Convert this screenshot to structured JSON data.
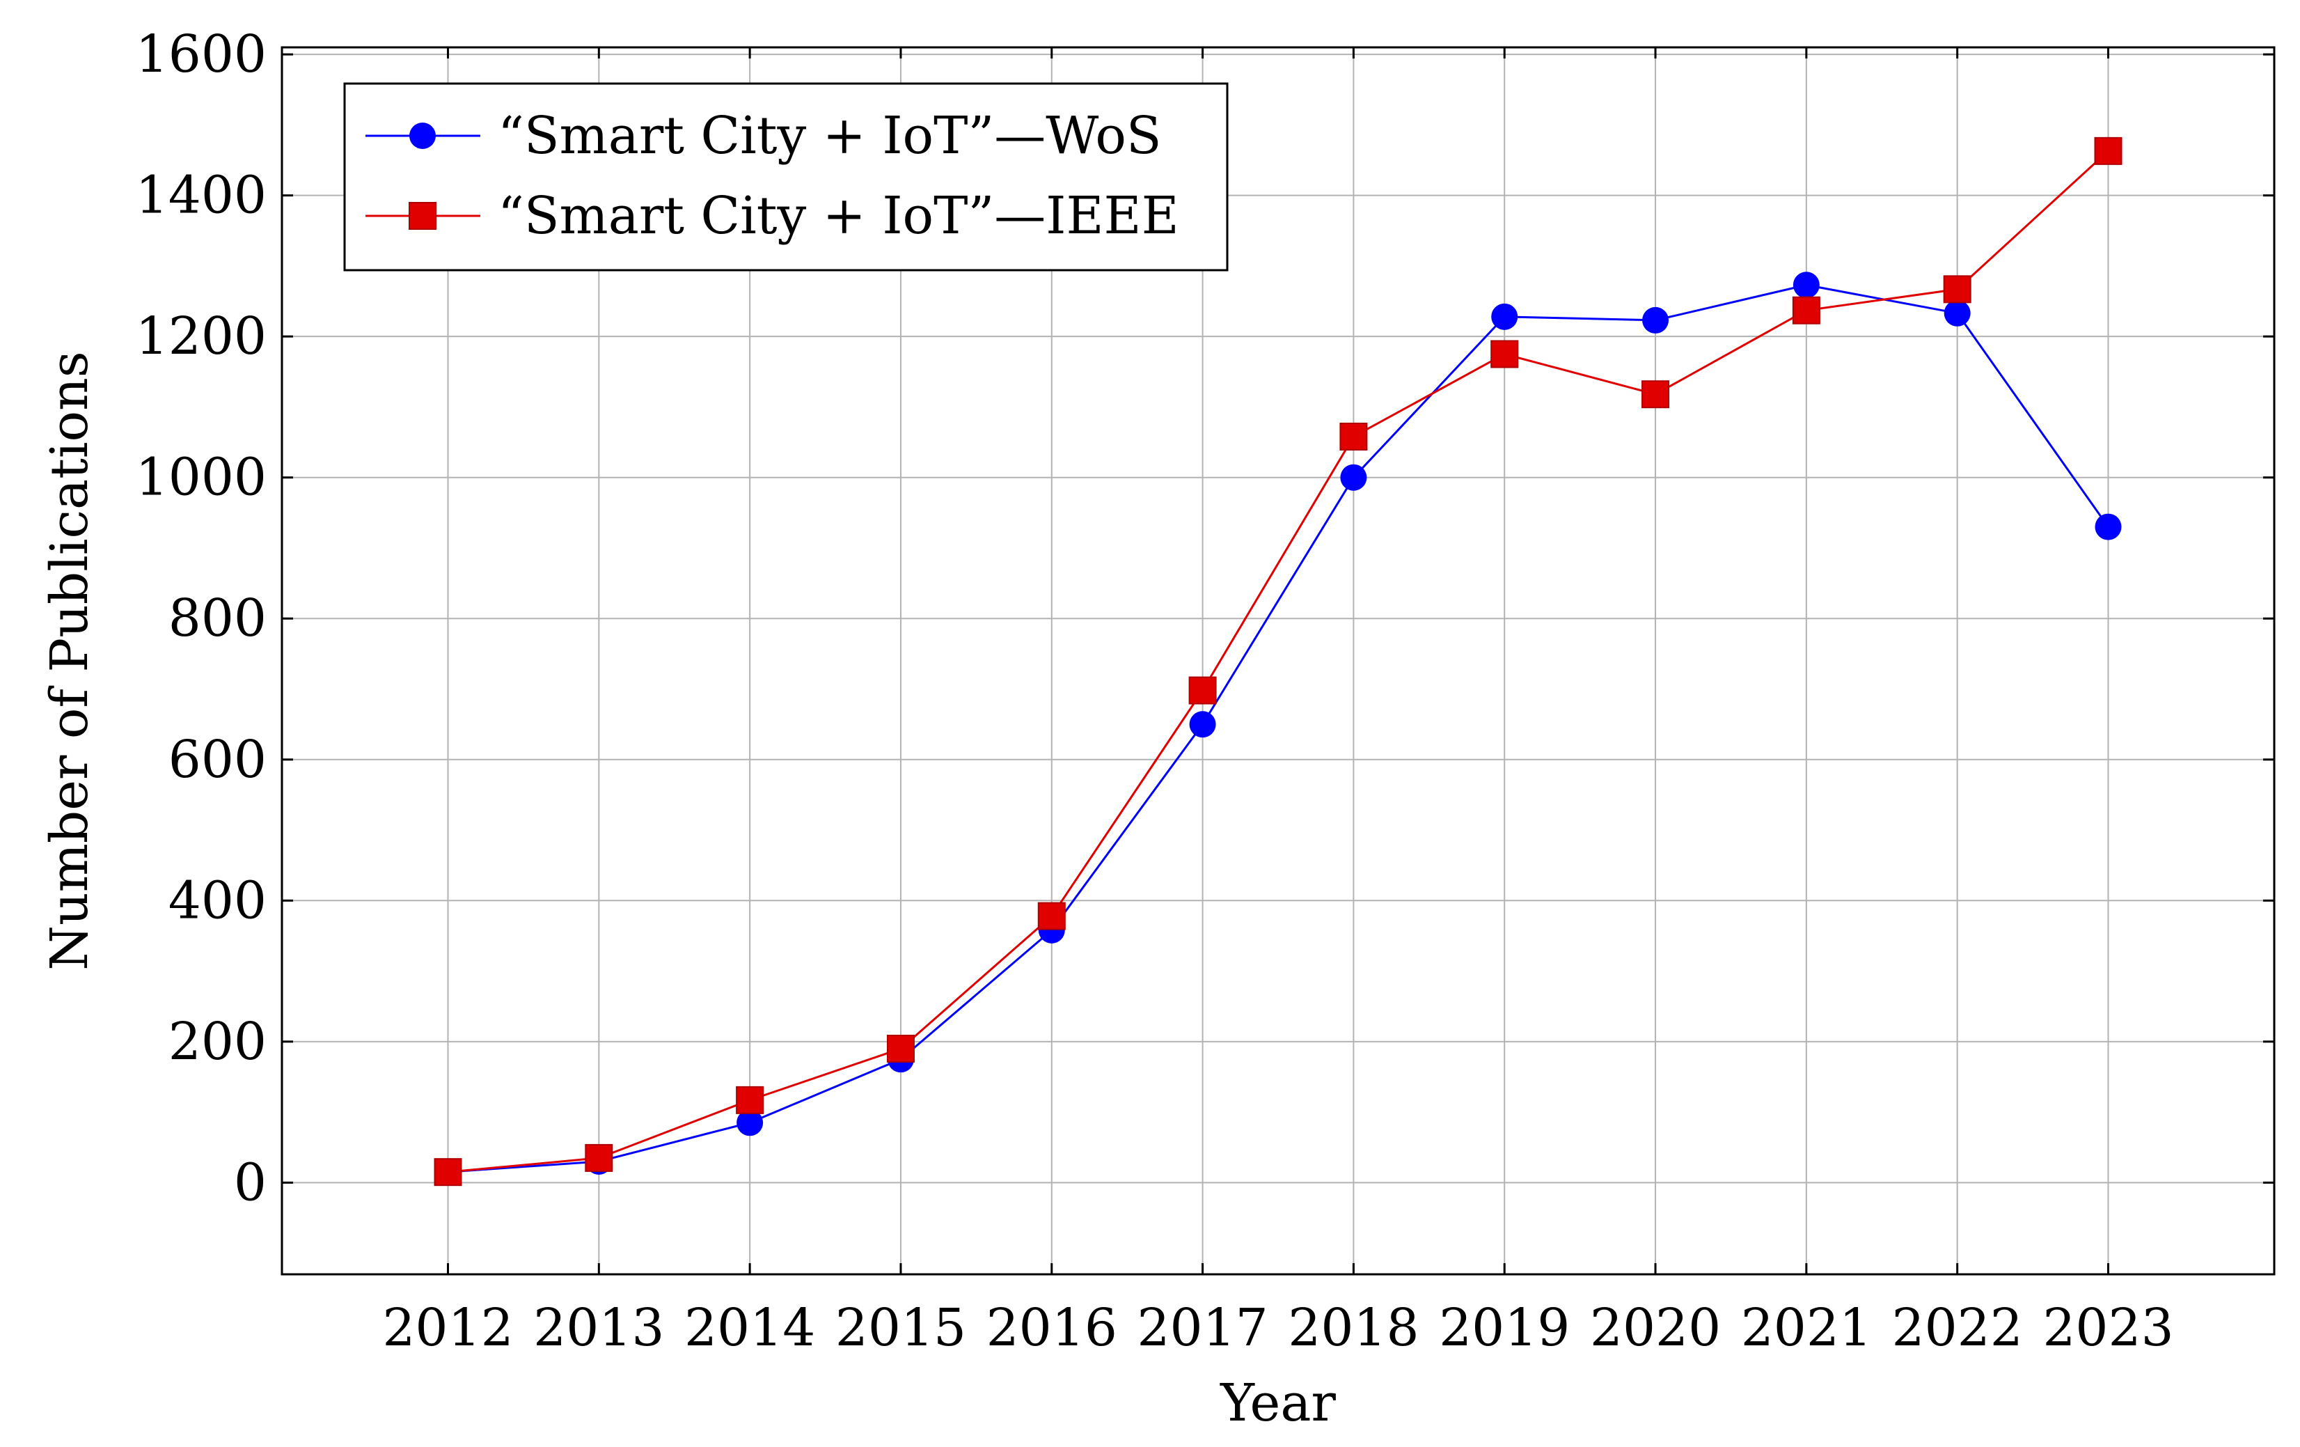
{
  "chart_data": {
    "type": "line",
    "title": "",
    "xlabel": "Year",
    "ylabel": "Number of Publications",
    "categories": [
      "2012",
      "2013",
      "2014",
      "2015",
      "2016",
      "2017",
      "2018",
      "2019",
      "2020",
      "2021",
      "2022",
      "2023"
    ],
    "xlim": [
      2010.9,
      2024.1
    ],
    "ylim": [
      -130,
      1610
    ],
    "yticks": [
      0,
      200,
      400,
      600,
      800,
      1000,
      1200,
      1400,
      1600
    ],
    "grid": true,
    "legend_position": "top-left",
    "series": [
      {
        "name": "“Smart City + IoT”—WoS",
        "color": "#0000ff",
        "marker": "circle",
        "values": [
          15,
          30,
          85,
          175,
          358,
          650,
          1000,
          1228,
          1223,
          1273,
          1233,
          930
        ]
      },
      {
        "name": "“Smart City + IoT”—IEEE",
        "color": "#e00000",
        "marker": "square",
        "values": [
          15,
          35,
          117,
          190,
          378,
          698,
          1058,
          1175,
          1118,
          1237,
          1267,
          1463
        ]
      }
    ]
  }
}
